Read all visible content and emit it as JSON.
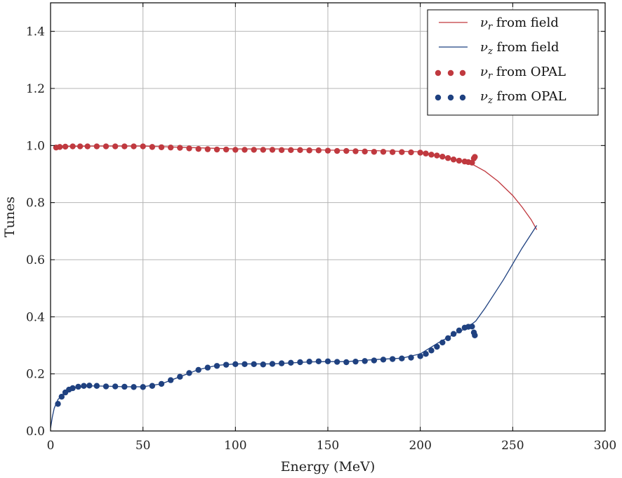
{
  "chart_data": {
    "type": "line",
    "title": "",
    "xlabel": "Energy (MeV)",
    "ylabel": "Tunes",
    "xlim": [
      0,
      300
    ],
    "ylim": [
      0.0,
      1.5
    ],
    "xticks": [
      0,
      50,
      100,
      150,
      200,
      250,
      300
    ],
    "yticks": [
      0.0,
      0.2,
      0.4,
      0.6,
      0.8,
      1.0,
      1.2,
      1.4
    ],
    "xtick_labels": [
      "0",
      "50",
      "100",
      "150",
      "200",
      "250",
      "300"
    ],
    "ytick_labels": [
      "0.0",
      "0.2",
      "0.4",
      "0.6",
      "0.8",
      "1.0",
      "1.2",
      "1.4"
    ],
    "grid": true,
    "legend_position": "top-right",
    "colors": {
      "red": "#c0393f",
      "blue": "#1f4180",
      "grid": "#b5b5b5",
      "axis": "#000000"
    },
    "series": [
      {
        "name": "νr from field",
        "legend_main": "ν",
        "legend_sub": "r",
        "legend_rest": " from field",
        "kind": "line",
        "color": "#c0393f",
        "x": [
          2,
          10,
          25,
          50,
          75,
          100,
          125,
          150,
          175,
          200,
          210,
          220,
          228,
          235,
          242,
          250,
          255,
          260,
          263
        ],
        "y": [
          0.995,
          0.997,
          0.998,
          0.998,
          0.993,
          0.988,
          0.988,
          0.984,
          0.982,
          0.978,
          0.965,
          0.95,
          0.935,
          0.91,
          0.875,
          0.825,
          0.785,
          0.74,
          0.705
        ]
      },
      {
        "name": "νz from field",
        "legend_main": "ν",
        "legend_sub": "z",
        "legend_rest": " from field",
        "kind": "line",
        "color": "#1f4180",
        "x": [
          0,
          1,
          2,
          4,
          7,
          10,
          15,
          20,
          30,
          40,
          50,
          60,
          70,
          80,
          90,
          100,
          120,
          140,
          150,
          160,
          175,
          190,
          200,
          210,
          220,
          225,
          230,
          235,
          240,
          245,
          250,
          255,
          260,
          263
        ],
        "y": [
          0.01,
          0.05,
          0.08,
          0.11,
          0.13,
          0.145,
          0.155,
          0.158,
          0.157,
          0.155,
          0.155,
          0.165,
          0.19,
          0.215,
          0.23,
          0.235,
          0.235,
          0.242,
          0.243,
          0.243,
          0.25,
          0.255,
          0.27,
          0.31,
          0.345,
          0.36,
          0.385,
          0.43,
          0.48,
          0.53,
          0.585,
          0.64,
          0.69,
          0.72
        ]
      },
      {
        "name": "νr from OPAL",
        "legend_main": "ν",
        "legend_sub": "r",
        "legend_rest": " from OPAL",
        "kind": "scatter",
        "color": "#c0393f",
        "x": [
          3,
          5,
          8,
          12,
          16,
          20,
          25,
          30,
          35,
          40,
          45,
          50,
          55,
          60,
          65,
          70,
          75,
          80,
          85,
          90,
          95,
          100,
          105,
          110,
          115,
          120,
          125,
          130,
          135,
          140,
          145,
          150,
          155,
          160,
          165,
          170,
          175,
          180,
          185,
          190,
          195,
          200,
          203,
          206,
          209,
          212,
          215,
          218,
          221,
          224,
          226,
          228,
          229,
          229.5
        ],
        "y": [
          0.993,
          0.995,
          0.996,
          0.997,
          0.997,
          0.997,
          0.997,
          0.997,
          0.997,
          0.997,
          0.997,
          0.997,
          0.995,
          0.994,
          0.993,
          0.992,
          0.99,
          0.988,
          0.987,
          0.986,
          0.986,
          0.985,
          0.985,
          0.985,
          0.985,
          0.985,
          0.984,
          0.984,
          0.984,
          0.983,
          0.983,
          0.982,
          0.981,
          0.981,
          0.98,
          0.979,
          0.978,
          0.978,
          0.977,
          0.977,
          0.976,
          0.975,
          0.972,
          0.968,
          0.965,
          0.961,
          0.956,
          0.951,
          0.947,
          0.944,
          0.942,
          0.94,
          0.955,
          0.96
        ]
      },
      {
        "name": "νz from OPAL",
        "legend_main": "ν",
        "legend_sub": "z",
        "legend_rest": " from OPAL",
        "kind": "scatter",
        "color": "#1f4180",
        "x": [
          4,
          6,
          8,
          10,
          12,
          15,
          18,
          21,
          25,
          30,
          35,
          40,
          45,
          50,
          55,
          60,
          65,
          70,
          75,
          80,
          85,
          90,
          95,
          100,
          105,
          110,
          115,
          120,
          125,
          130,
          135,
          140,
          145,
          150,
          155,
          160,
          165,
          170,
          175,
          180,
          185,
          190,
          195,
          200,
          203,
          206,
          209,
          212,
          215,
          218,
          221,
          224,
          226,
          228,
          229,
          229.5
        ],
        "y": [
          0.095,
          0.12,
          0.135,
          0.145,
          0.15,
          0.155,
          0.158,
          0.159,
          0.158,
          0.156,
          0.156,
          0.155,
          0.154,
          0.154,
          0.158,
          0.165,
          0.178,
          0.19,
          0.203,
          0.214,
          0.222,
          0.228,
          0.232,
          0.234,
          0.234,
          0.234,
          0.233,
          0.235,
          0.237,
          0.239,
          0.241,
          0.243,
          0.244,
          0.244,
          0.242,
          0.241,
          0.243,
          0.245,
          0.247,
          0.25,
          0.252,
          0.254,
          0.257,
          0.262,
          0.27,
          0.282,
          0.295,
          0.31,
          0.325,
          0.34,
          0.352,
          0.362,
          0.365,
          0.366,
          0.345,
          0.335
        ]
      }
    ]
  }
}
